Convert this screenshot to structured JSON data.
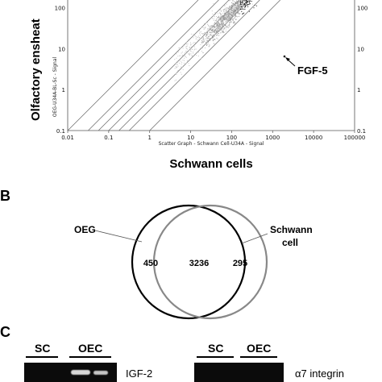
{
  "panelA": {
    "y_title": "Olfactory ensheat",
    "y_axis_small": "OEG-U34A-BL-Sc - Signal",
    "x_axis_small": "Scatter Graph - Schwann Cell-U34A - Signal",
    "x_title": "Schwann cells",
    "annotation": "FGF-5",
    "x_ticks": [
      "0.01",
      "0.1",
      "1",
      "10",
      "100",
      "1000",
      "10000",
      "100000"
    ],
    "y_ticks": [
      "0.1",
      "1",
      "10",
      "100"
    ],
    "right_ticks": [
      "0.1",
      "1",
      "10",
      "100"
    ]
  },
  "panelB": {
    "letter": "B",
    "left_label": "OEG",
    "right_label_line1": "Schwann",
    "right_label_line2": "cell",
    "left_only": "450",
    "overlap": "3236",
    "right_only": "295"
  },
  "panelC": {
    "letter": "C",
    "left_gel": {
      "lane1": "SC",
      "lane2": "OEC",
      "gene": "IGF-2"
    },
    "right_gel": {
      "lane1": "SC",
      "lane2": "OEC",
      "gene": "α7 integrin"
    }
  }
}
